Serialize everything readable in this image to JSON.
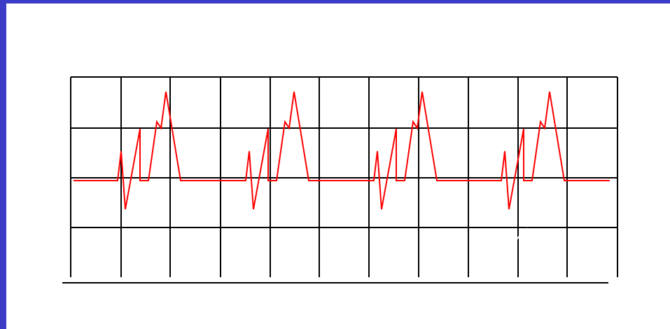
{
  "colors": {
    "frame_accent": "#3c3cc8",
    "grid_line": "#000000",
    "trace": "#ff0000",
    "background": "#ffffff"
  },
  "waveform": {
    "beats": 4,
    "baseline_style": "flat",
    "complex_shape": [
      "small-spike-up",
      "deep-dip",
      "sharp-rise",
      "return",
      "notched-tall-peak",
      "return-to-baseline"
    ]
  }
}
